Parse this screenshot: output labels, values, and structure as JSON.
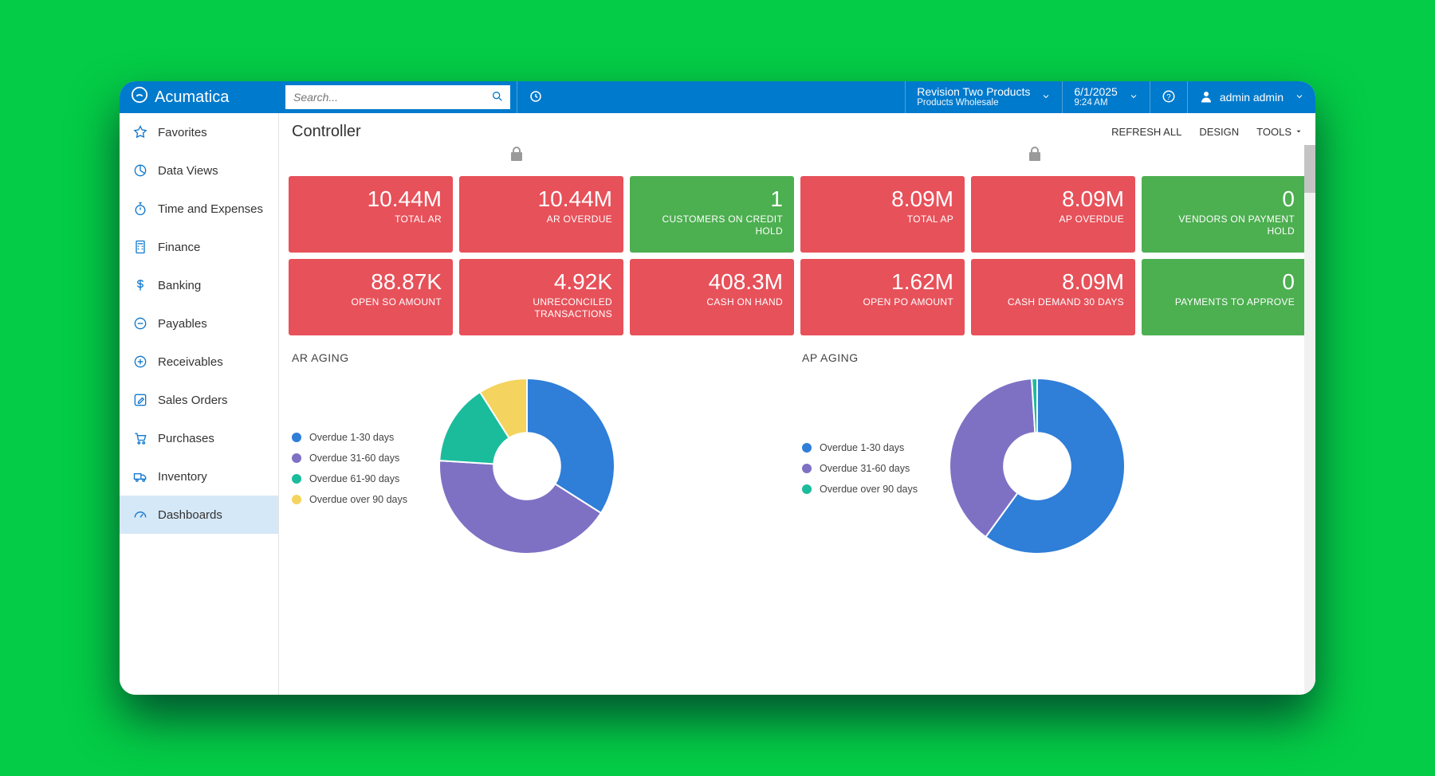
{
  "brand": "Acumatica",
  "search_placeholder": "Search...",
  "tenant": {
    "name": "Revision Two Products",
    "sub": "Products Wholesale"
  },
  "datetime": {
    "date": "6/1/2025",
    "time": "9:24 AM"
  },
  "user": "admin admin",
  "sidebar": [
    {
      "id": "favorites",
      "label": "Favorites",
      "icon": "star"
    },
    {
      "id": "data-views",
      "label": "Data Views",
      "icon": "pie"
    },
    {
      "id": "time-expenses",
      "label": "Time and Expenses",
      "icon": "stopwatch"
    },
    {
      "id": "finance",
      "label": "Finance",
      "icon": "calculator"
    },
    {
      "id": "banking",
      "label": "Banking",
      "icon": "dollar"
    },
    {
      "id": "payables",
      "label": "Payables",
      "icon": "minus-circle"
    },
    {
      "id": "receivables",
      "label": "Receivables",
      "icon": "plus-circle"
    },
    {
      "id": "sales-orders",
      "label": "Sales Orders",
      "icon": "edit-square"
    },
    {
      "id": "purchases",
      "label": "Purchases",
      "icon": "cart"
    },
    {
      "id": "inventory",
      "label": "Inventory",
      "icon": "truck"
    },
    {
      "id": "dashboards",
      "label": "Dashboards",
      "icon": "gauge",
      "active": true
    }
  ],
  "page_title": "Controller",
  "actions": {
    "refresh": "REFRESH ALL",
    "design": "DESIGN",
    "tools": "TOOLS"
  },
  "colors": {
    "red": "#e7515a",
    "green": "#4caf50",
    "topbar": "#007acc",
    "chart_blue": "#2f7ed8",
    "chart_purple": "#7e71c4",
    "chart_teal": "#1abc9c",
    "chart_yellow": "#f4d35e"
  },
  "kpis": [
    {
      "value": "10.44M",
      "label": "TOTAL AR",
      "color": "red"
    },
    {
      "value": "10.44M",
      "label": "AR OVERDUE",
      "color": "red"
    },
    {
      "value": "1",
      "label": "CUSTOMERS ON CREDIT HOLD",
      "color": "green"
    },
    {
      "value": "8.09M",
      "label": "TOTAL AP",
      "color": "red"
    },
    {
      "value": "8.09M",
      "label": "AP OVERDUE",
      "color": "red"
    },
    {
      "value": "0",
      "label": "VENDORS ON PAYMENT HOLD",
      "color": "green"
    },
    {
      "value": "88.87K",
      "label": "OPEN SO AMOUNT",
      "color": "red"
    },
    {
      "value": "4.92K",
      "label": "UNRECONCILED TRANSACTIONS",
      "color": "red"
    },
    {
      "value": "408.3M",
      "label": "CASH ON HAND",
      "color": "red"
    },
    {
      "value": "1.62M",
      "label": "OPEN PO AMOUNT",
      "color": "red"
    },
    {
      "value": "8.09M",
      "label": "CASH DEMAND 30 DAYS",
      "color": "red"
    },
    {
      "value": "0",
      "label": "PAYMENTS TO APPROVE",
      "color": "green"
    }
  ],
  "charts": [
    {
      "id": "ar-aging",
      "title": "AR AGING",
      "type": "donut",
      "inner_radius_pct": 38,
      "size": 220,
      "slices": [
        {
          "label": "Overdue 1-30 days",
          "value": 34,
          "color": "#2f7ed8"
        },
        {
          "label": "Overdue 31-60 days",
          "value": 42,
          "color": "#7e71c4"
        },
        {
          "label": "Overdue 61-90 days",
          "value": 15,
          "color": "#1abc9c"
        },
        {
          "label": "Overdue over 90 days",
          "value": 9,
          "color": "#f4d35e"
        }
      ]
    },
    {
      "id": "ap-aging",
      "title": "AP AGING",
      "type": "donut",
      "inner_radius_pct": 38,
      "size": 220,
      "slices": [
        {
          "label": "Overdue 1-30 days",
          "value": 60,
          "color": "#2f7ed8"
        },
        {
          "label": "Overdue 31-60 days",
          "value": 39,
          "color": "#7e71c4"
        },
        {
          "label": "Overdue over 90 days",
          "value": 1,
          "color": "#1abc9c"
        }
      ]
    }
  ],
  "locks": [
    {
      "left_pct": 22
    },
    {
      "left_pct": 72
    }
  ]
}
